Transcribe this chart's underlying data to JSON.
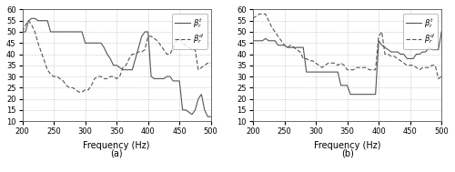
{
  "title_a": "(a)",
  "title_b": "(b)",
  "xlabel": "Frequency (Hz)",
  "ylabel": "",
  "xlim": [
    200,
    500
  ],
  "ylim_a": [
    10,
    60
  ],
  "ylim_b": [
    10,
    60
  ],
  "yticks_a": [
    10,
    15,
    20,
    25,
    30,
    35,
    40,
    45,
    50,
    55,
    60
  ],
  "yticks_b": [
    10,
    15,
    20,
    25,
    30,
    35,
    40,
    45,
    50,
    55,
    60
  ],
  "xticks": [
    200,
    250,
    300,
    350,
    400,
    450,
    500
  ],
  "legend_a": [
    "β_r^t",
    "β_r^d"
  ],
  "legend_b": [
    "β_r^t",
    "β_r^d"
  ],
  "line1_color": "#555555",
  "line2_color": "#555555",
  "line1_style": "solid",
  "line2_style": "dashed",
  "background": "#ffffff",
  "grid_color": "#aaaaaa",
  "grid_style": "dotted",
  "subplot_a_x": [
    200,
    205,
    210,
    215,
    220,
    225,
    230,
    235,
    240,
    245,
    250,
    255,
    260,
    265,
    270,
    275,
    280,
    285,
    290,
    295,
    300,
    305,
    310,
    315,
    320,
    325,
    330,
    335,
    340,
    345,
    350,
    355,
    360,
    365,
    370,
    375,
    380,
    385,
    390,
    395,
    400,
    405,
    410,
    415,
    420,
    425,
    430,
    435,
    440,
    445,
    450,
    455,
    460,
    465,
    470,
    475,
    480,
    485,
    490,
    495,
    500
  ],
  "subplot_a_y1": [
    50,
    50,
    55,
    56,
    56,
    55,
    55,
    55,
    55,
    50,
    50,
    50,
    50,
    50,
    50,
    50,
    50,
    50,
    50,
    50,
    45,
    45,
    45,
    45,
    45,
    45,
    43,
    40,
    38,
    35,
    35,
    34,
    33,
    33,
    33,
    33,
    38,
    43,
    48,
    50,
    50,
    30,
    29,
    29,
    29,
    29,
    30,
    30,
    28,
    28,
    28,
    15,
    15,
    14,
    13,
    15,
    20,
    22,
    15,
    12,
    12
  ],
  "subplot_a_y2": [
    50,
    53,
    55,
    53,
    50,
    45,
    41,
    37,
    33,
    31,
    30,
    30,
    29,
    28,
    26,
    25,
    25,
    24,
    23,
    23,
    24,
    24,
    26,
    29,
    30,
    30,
    29,
    29,
    30,
    30,
    29,
    30,
    34,
    35,
    38,
    40,
    40,
    41,
    41,
    42,
    48,
    48,
    47,
    46,
    44,
    42,
    40,
    40,
    43,
    46,
    47,
    45,
    44,
    43,
    42,
    42,
    33,
    34,
    35,
    36,
    36
  ],
  "subplot_b_x": [
    200,
    205,
    210,
    215,
    220,
    225,
    230,
    235,
    240,
    245,
    250,
    255,
    260,
    265,
    270,
    275,
    280,
    285,
    290,
    295,
    300,
    305,
    310,
    315,
    320,
    325,
    330,
    335,
    340,
    345,
    350,
    355,
    360,
    365,
    370,
    375,
    380,
    385,
    390,
    395,
    400,
    405,
    410,
    415,
    420,
    425,
    430,
    435,
    440,
    445,
    450,
    455,
    460,
    465,
    470,
    475,
    480,
    485,
    490,
    495,
    500
  ],
  "subplot_b_y1": [
    46,
    46,
    46,
    46,
    47,
    46,
    46,
    46,
    44,
    44,
    44,
    43,
    43,
    43,
    43,
    43,
    43,
    32,
    32,
    32,
    32,
    32,
    32,
    32,
    32,
    32,
    32,
    32,
    26,
    26,
    26,
    22,
    22,
    22,
    22,
    22,
    22,
    22,
    22,
    22,
    46,
    44,
    43,
    42,
    41,
    41,
    41,
    40,
    40,
    38,
    38,
    38,
    40,
    40,
    41,
    41,
    43,
    42,
    42,
    42,
    50
  ],
  "subplot_b_y2": [
    56,
    57,
    58,
    58,
    58,
    55,
    52,
    50,
    48,
    46,
    44,
    43,
    44,
    43,
    42,
    41,
    38,
    38,
    37,
    37,
    36,
    35,
    34,
    35,
    36,
    36,
    36,
    35,
    36,
    35,
    33,
    33,
    33,
    34,
    34,
    34,
    34,
    33,
    33,
    33,
    48,
    50,
    40,
    40,
    39,
    39,
    38,
    37,
    36,
    35,
    35,
    35,
    34,
    33,
    34,
    34,
    34,
    35,
    35,
    29,
    30
  ]
}
